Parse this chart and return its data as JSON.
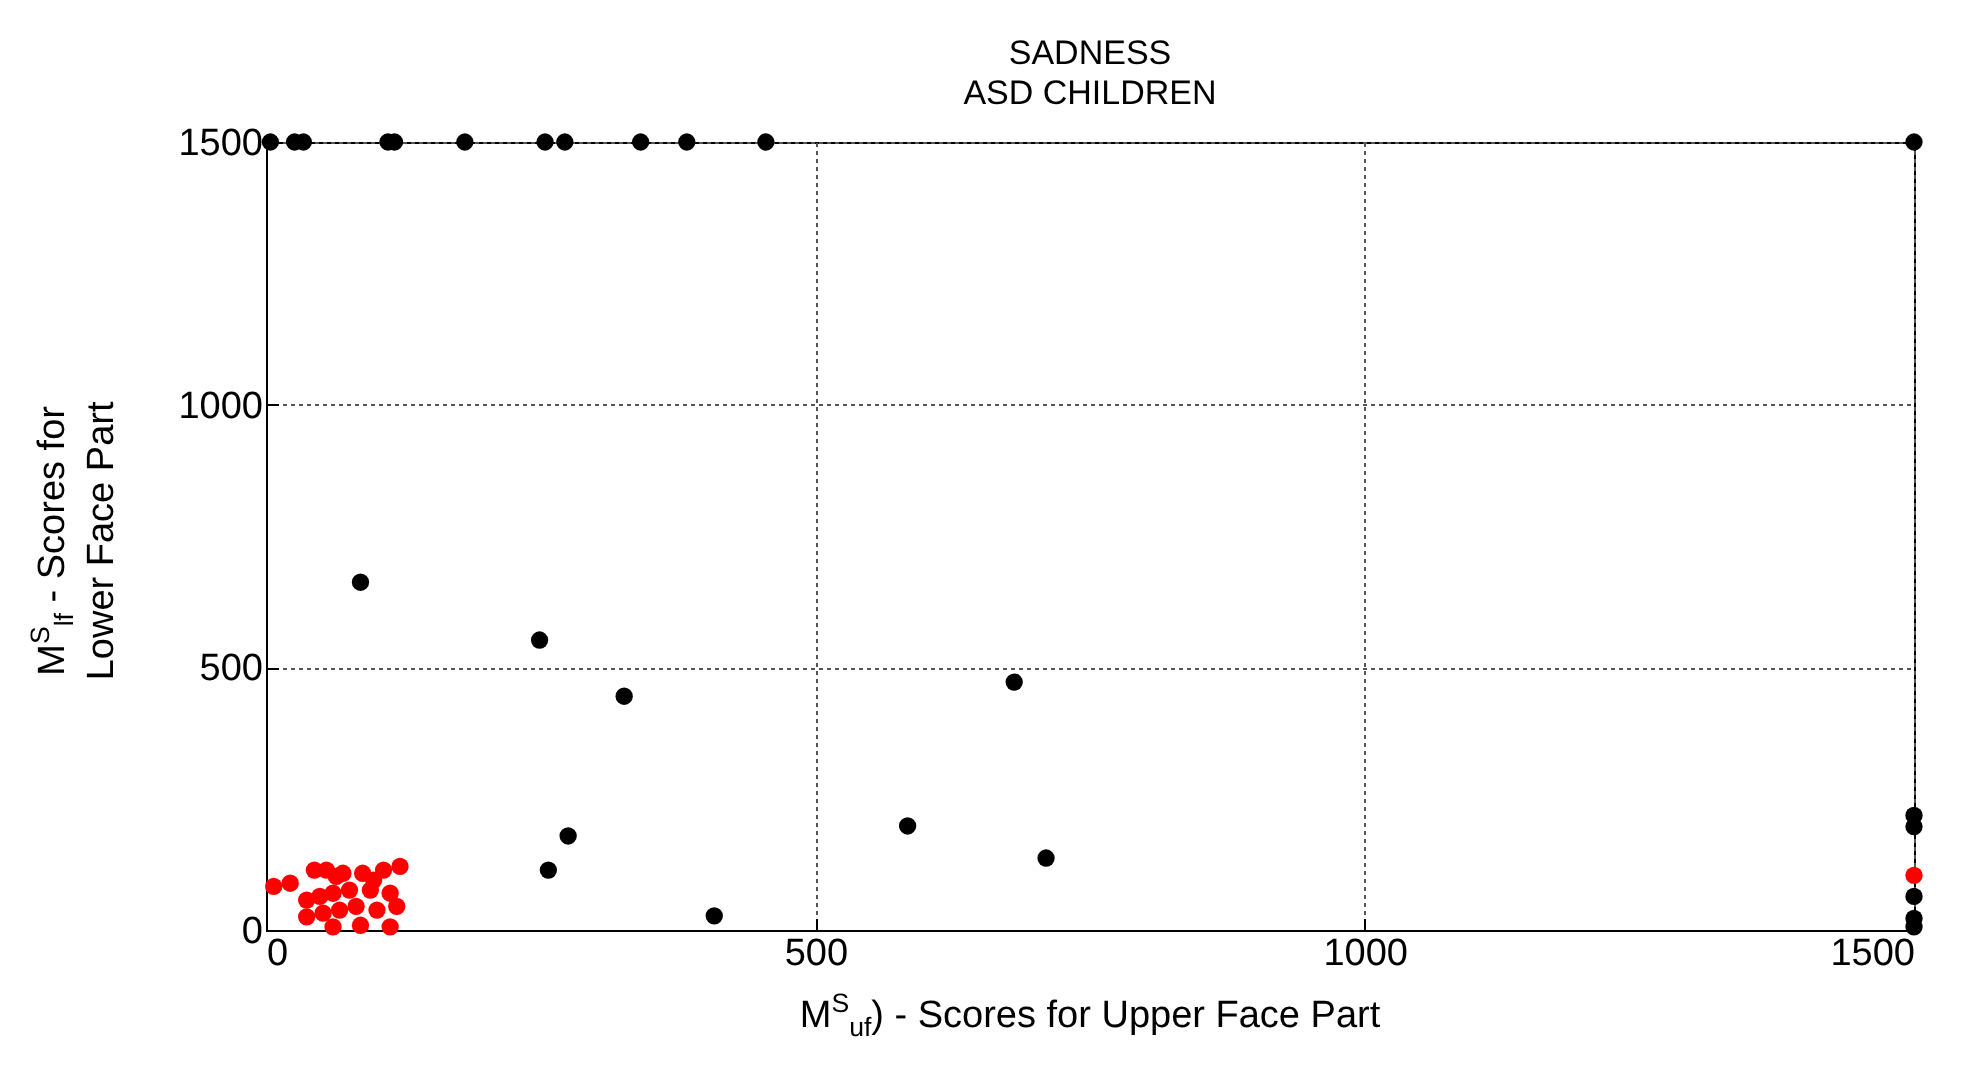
{
  "chart_data": {
    "type": "scatter",
    "title": "SADNESS\nASD CHILDREN",
    "xlabel": "M$^{S}$$_{uf}$) - Scores for Upper Face Part",
    "ylabel": "M$^{S}$$_{lf}$ - Scores for\nLower Face Part",
    "xlim": [
      0,
      1500
    ],
    "ylim": [
      0,
      1500
    ],
    "xticks": [
      0,
      500,
      1000,
      1500
    ],
    "yticks": [
      0,
      500,
      1000,
      1500
    ],
    "grid": true,
    "marker": "circle",
    "series": [
      {
        "color": "#000000",
        "x": [
          4,
          26,
          34,
          111,
          117,
          181,
          254,
          272,
          341,
          383,
          455,
          1500,
          86,
          249,
          326,
          681,
          584,
          710,
          275,
          257,
          408,
          1500,
          1500,
          1500,
          1500,
          1500
        ],
        "values": [
          1500,
          1500,
          1500,
          1500,
          1500,
          1500,
          1500,
          1500,
          1500,
          1500,
          1500,
          1500,
          662,
          552,
          445,
          472,
          198,
          137,
          179,
          114,
          27,
          218,
          197,
          64,
          22,
          6
        ]
      },
      {
        "color": "#ff0000",
        "x": [
          7,
          22,
          44,
          55,
          70,
          88,
          107,
          122,
          37,
          49,
          61,
          76,
          95,
          113,
          37,
          52,
          67,
          82,
          101,
          119,
          61,
          86,
          113,
          64,
          98,
          1500
        ],
        "values": [
          83,
          89,
          114,
          114,
          108,
          108,
          114,
          121,
          57,
          64,
          70,
          76,
          76,
          70,
          25,
          32,
          38,
          45,
          38,
          45,
          6,
          9,
          6,
          102,
          95,
          104
        ]
      }
    ]
  }
}
